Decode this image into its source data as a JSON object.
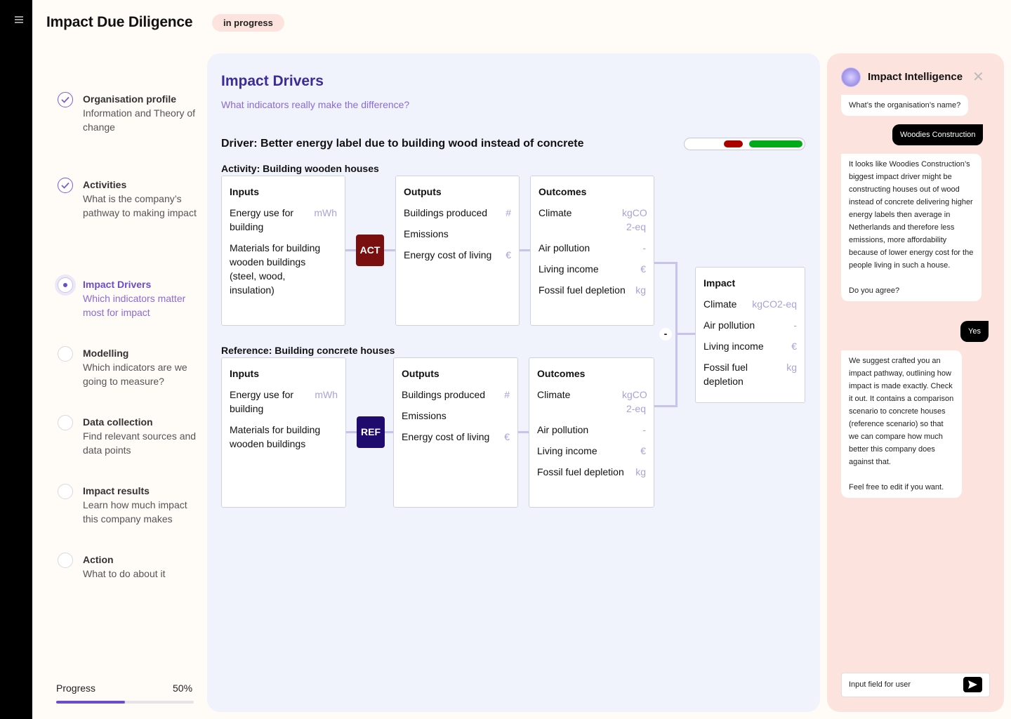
{
  "app": {
    "title": "Impact Due Diligence",
    "status": "in progress"
  },
  "steps": [
    {
      "title": "Organisation profile",
      "desc": "Information and Theory of change",
      "state": "done"
    },
    {
      "title": "Activities",
      "desc": "What is the company’s pathway to making impact",
      "state": "done"
    },
    {
      "title": "Impact Drivers",
      "desc": "Which indicators matter most for impact",
      "state": "active"
    },
    {
      "title": "Modelling",
      "desc": "Which indicators are we going to measure?",
      "state": "todo"
    },
    {
      "title": "Data collection",
      "desc": "Find relevant sources and data points",
      "state": "todo"
    },
    {
      "title": "Impact results",
      "desc": "Learn how much impact this company makes",
      "state": "todo"
    },
    {
      "title": "Action",
      "desc": "What to do about it",
      "state": "todo"
    }
  ],
  "progress": {
    "label": "Progress",
    "value_text": "50%",
    "fraction": 0.5
  },
  "main": {
    "title": "Impact Drivers",
    "subtitle": "What indicators really make the difference?",
    "driver": "Driver: Better energy label due to building wood instead of concrete",
    "activity": {
      "label": "Activity: Building wooden houses",
      "badge": "ACT",
      "inputs": {
        "title": "Inputs",
        "rows": [
          {
            "label": "Energy use for building",
            "unit": "mWh"
          },
          {
            "label": "Materials for building wooden buildings (steel, wood, insulation)",
            "unit": ""
          }
        ]
      },
      "outputs": {
        "title": "Outputs",
        "rows": [
          {
            "label": "Buildings produced",
            "unit": "#"
          },
          {
            "label": "Emissions",
            "unit": ""
          },
          {
            "label": "Energy cost of living",
            "unit": "€"
          }
        ]
      },
      "outcomes": {
        "title": "Outcomes",
        "rows": [
          {
            "label": "Climate",
            "unit": "kgCO 2-eq"
          },
          {
            "label": "Air pollution",
            "unit": "-"
          },
          {
            "label": "Living income",
            "unit": "€"
          },
          {
            "label": "Fossil fuel depletion",
            "unit": "kg"
          }
        ]
      }
    },
    "reference": {
      "label": "Reference: Building concrete houses",
      "badge": "REF",
      "inputs": {
        "title": "Inputs",
        "rows": [
          {
            "label": "Energy use for building",
            "unit": "mWh"
          },
          {
            "label": "Materials for building wooden buildings",
            "unit": ""
          }
        ]
      },
      "outputs": {
        "title": "Outputs",
        "rows": [
          {
            "label": "Buildings produced",
            "unit": "#"
          },
          {
            "label": "Emissions",
            "unit": ""
          },
          {
            "label": "Energy cost of living",
            "unit": "€"
          }
        ]
      },
      "outcomes": {
        "title": "Outcomes",
        "rows": [
          {
            "label": "Climate",
            "unit": "kgCO 2-eq"
          },
          {
            "label": "Air pollution",
            "unit": "-"
          },
          {
            "label": "Living income",
            "unit": "€"
          },
          {
            "label": "Fossil fuel depletion",
            "unit": "kg"
          }
        ]
      }
    },
    "impact": {
      "title": "Impact",
      "rows": [
        {
          "label": "Climate",
          "unit": "kgCO2-eq"
        },
        {
          "label": "Air pollution",
          "unit": "-"
        },
        {
          "label": "Living income",
          "unit": "€"
        },
        {
          "label": "Fossil fuel depletion",
          "unit": "kg"
        }
      ]
    },
    "minus_sign": "-",
    "rating_colors": {
      "negative": "#aa0000",
      "positive": "#00aa1a"
    }
  },
  "chat": {
    "title": "Impact Intelligence",
    "close_icon": "✕",
    "messages": [
      {
        "from": "bot",
        "text": "What’s the organisation’s name?"
      },
      {
        "from": "user",
        "text": "Woodies Construction"
      },
      {
        "from": "bot",
        "text": "It looks like Woodies Construction’s biggest impact driver might be constructing houses out of wood instead of concrete delivering higher energy labels then average in Netherlands and therefore less emissions, more affordability because of lower energy cost for the people living in such a house.\n\nDo you agree?"
      },
      {
        "from": "user",
        "text": "Yes"
      },
      {
        "from": "bot",
        "text": "We suggest crafted you an impact pathway, outlining how impact is made exactly. Check it out. It contains a comparison scenario to concrete houses (reference scenario) so that we can compare how much better this company does against that.\n\nFeel free to edit if you want."
      }
    ],
    "input_value": "Input field for user"
  }
}
